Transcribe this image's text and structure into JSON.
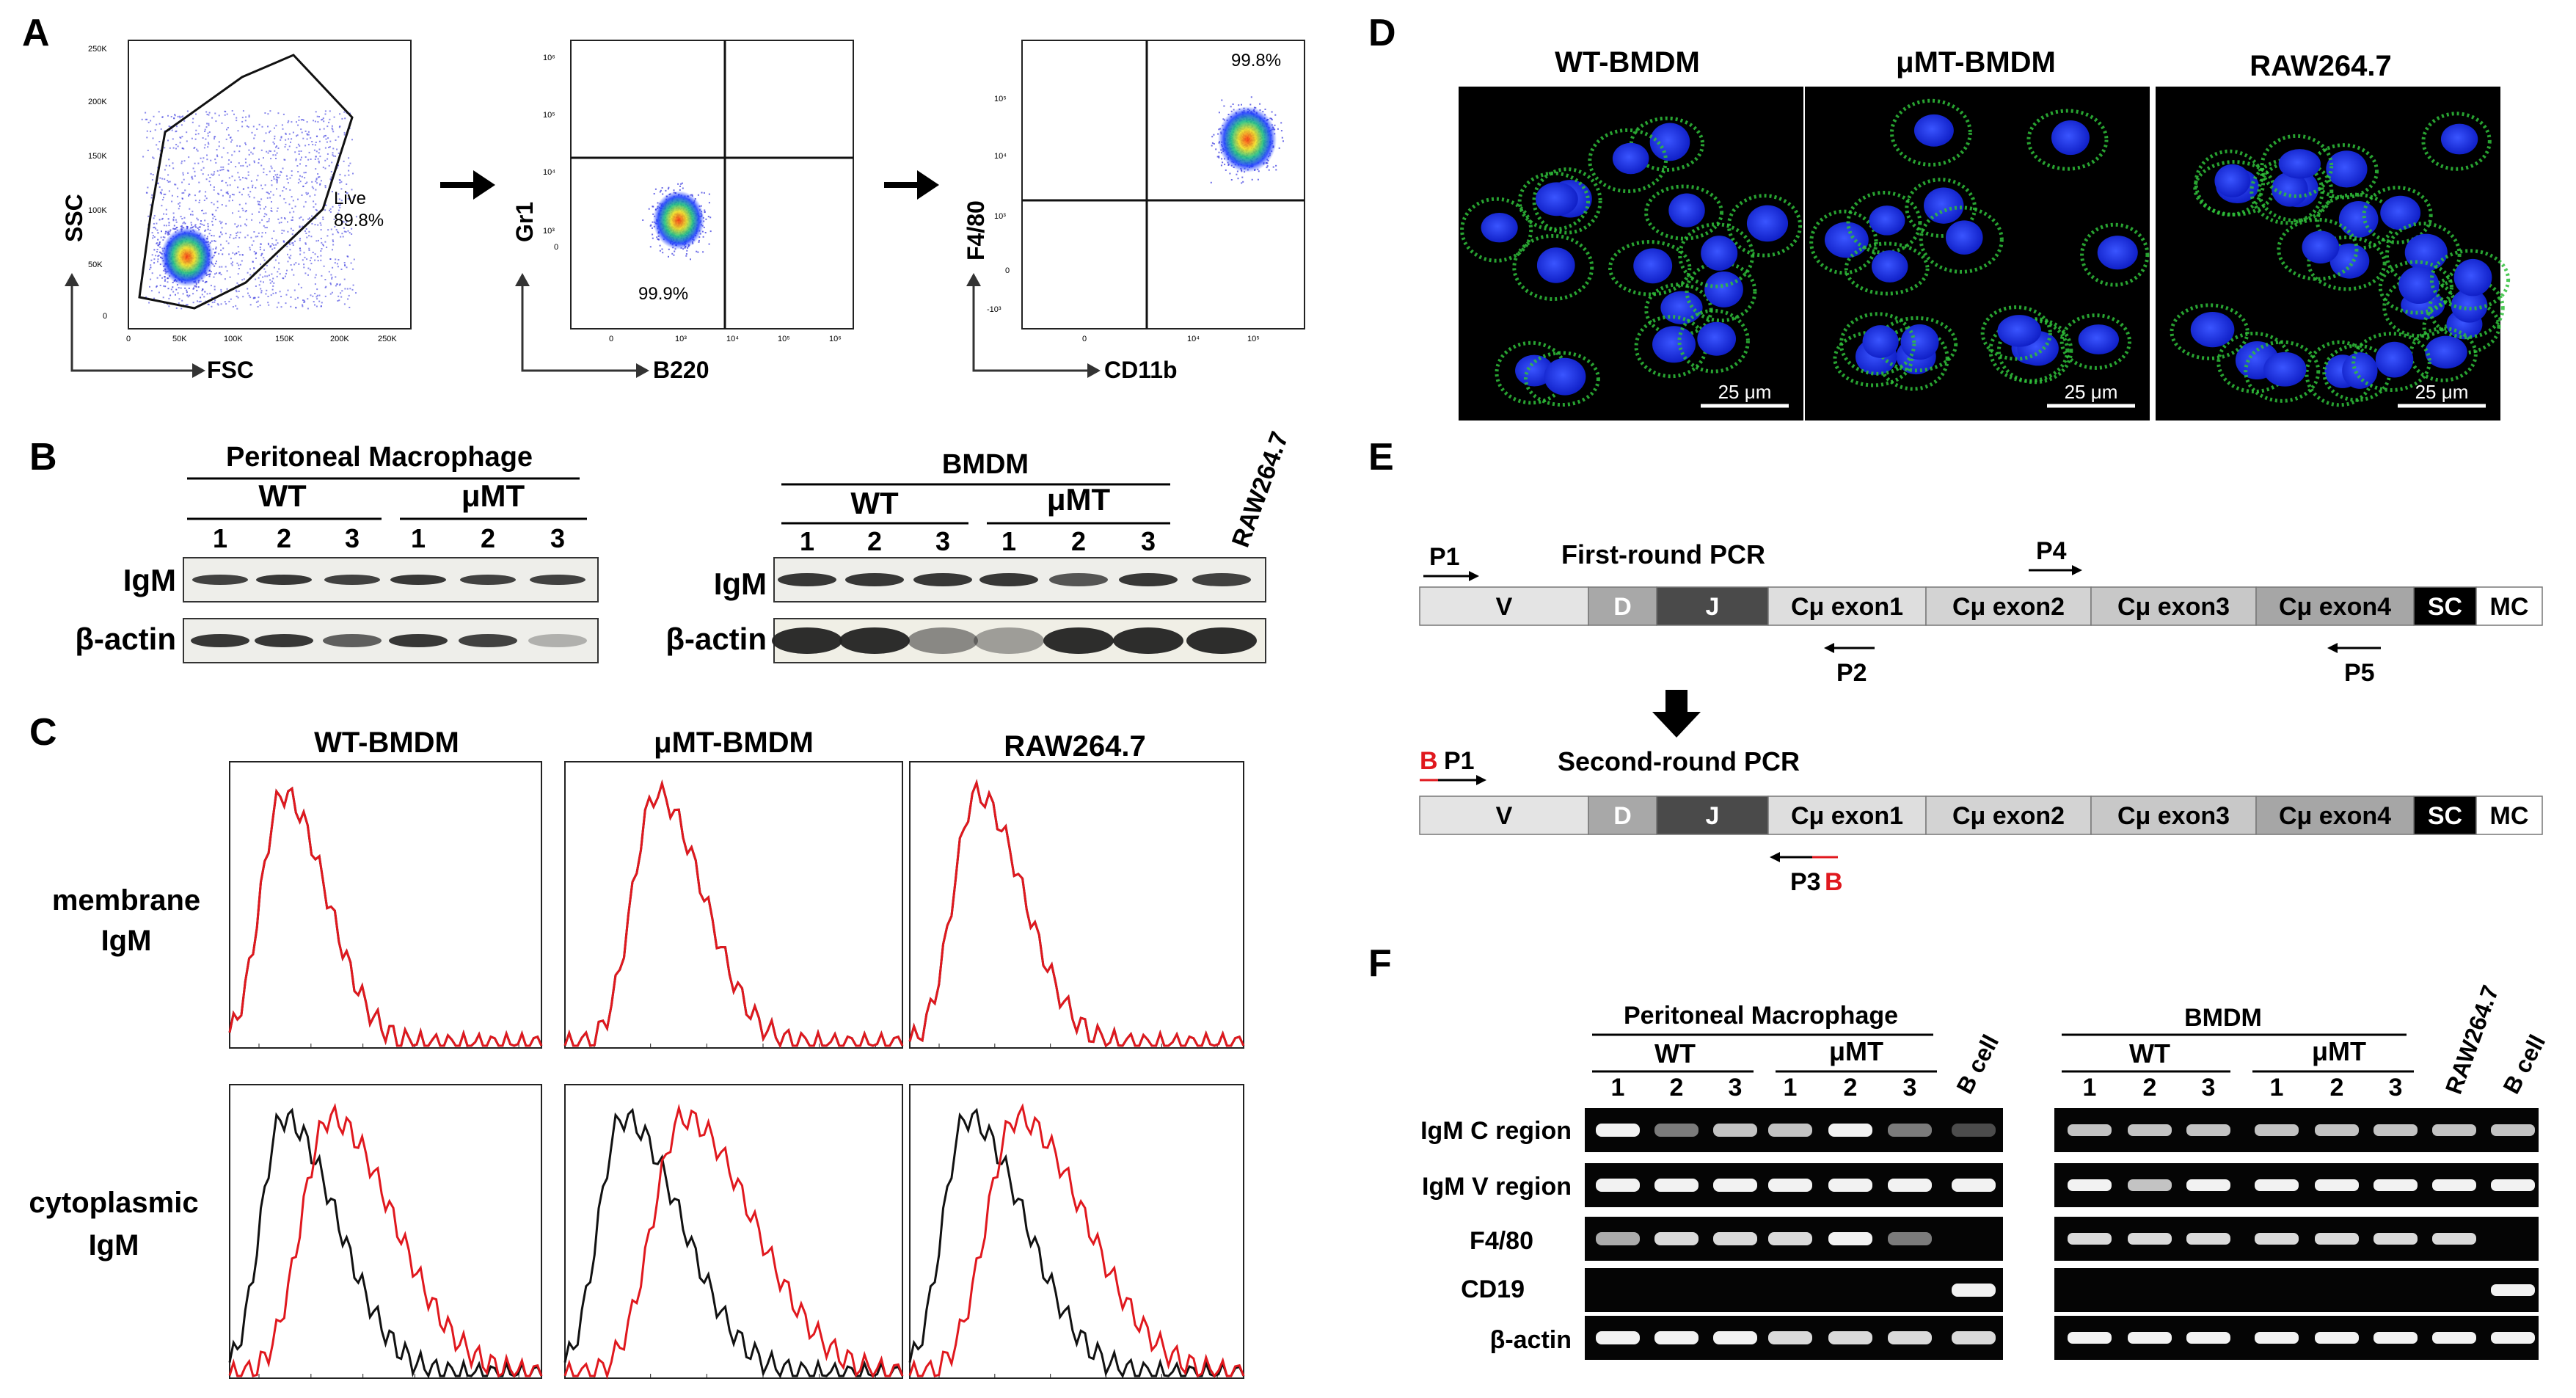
{
  "panel_letters": {
    "a": "A",
    "b": "B",
    "c": "C",
    "d": "D",
    "e": "E",
    "f": "F"
  },
  "panel_a": {
    "plot1": {
      "ylabel": "SSC",
      "xlabel": "FSC",
      "gate_label": "Live",
      "gate_pct": "89.8%",
      "yticks": [
        "250K",
        "200K",
        "150K",
        "100K",
        "50K",
        "0"
      ],
      "xticks": [
        "0",
        "50K",
        "100K",
        "150K",
        "200K",
        "250K"
      ]
    },
    "plot2": {
      "ylabel": "Gr1",
      "xlabel": "B220",
      "pct": "99.9%",
      "yticks": [
        "10⁶",
        "10⁵",
        "10⁴",
        "10³",
        "0"
      ],
      "xticks": [
        "0",
        "10³",
        "10⁴",
        "10⁵",
        "10⁶"
      ]
    },
    "plot3": {
      "ylabel": "F4/80",
      "xlabel": "CD11b",
      "pct": "99.8%",
      "yticks": [
        "10⁵",
        "10⁴",
        "10³",
        "0",
        "-10³"
      ],
      "xticks": [
        "0",
        "10⁴",
        "10⁵"
      ]
    }
  },
  "panel_b": {
    "left": {
      "title": "Peritoneal Macrophage",
      "group1": "WT",
      "group2": "μMT",
      "lanes": [
        "1",
        "2",
        "3",
        "1",
        "2",
        "3"
      ],
      "row1": "IgM",
      "row2": "β-actin"
    },
    "right": {
      "title": "BMDM",
      "group1": "WT",
      "group2": "μMT",
      "lanes": [
        "1",
        "2",
        "3",
        "1",
        "2",
        "3"
      ],
      "extra_lane": "RAW264.7",
      "row1": "IgM",
      "row2": "β-actin"
    }
  },
  "panel_c": {
    "columns": [
      "WT-BMDM",
      "μMT-BMDM",
      "RAW264.7"
    ],
    "row1": [
      "membrane",
      "IgM"
    ],
    "row2": [
      "cytoplasmic",
      "IgM"
    ],
    "colors": {
      "control": "#111111",
      "stain": "#e0181e"
    }
  },
  "panel_d": {
    "columns": [
      "WT-BMDM",
      "μMT-BMDM",
      "RAW264.7"
    ],
    "scale": "25 μm",
    "colors": {
      "nucleus": "#1f3cff",
      "stain": "#2fbf3a"
    }
  },
  "panel_e": {
    "round1": "First-round PCR",
    "round2": "Second-round PCR",
    "segments": [
      "V",
      "D",
      "J",
      "Cμ exon1",
      "Cμ exon2",
      "Cμ exon3",
      "Cμ exon4",
      "SC",
      "MC"
    ],
    "primers": {
      "p1": "P1",
      "p2": "P2",
      "p3": "P3",
      "p4": "P4",
      "p5": "P5",
      "b": "B"
    },
    "colors": {
      "marker": "#e0181e"
    }
  },
  "panel_f": {
    "left": {
      "title": "Peritoneal Macrophage",
      "group1": "WT",
      "group2": "μMT",
      "lanes": [
        "1",
        "2",
        "3",
        "1",
        "2",
        "3"
      ],
      "extra": "B cell"
    },
    "right": {
      "title": "BMDM",
      "group1": "WT",
      "group2": "μMT",
      "lanes": [
        "1",
        "2",
        "3",
        "1",
        "2",
        "3"
      ],
      "extra1": "RAW264.7",
      "extra2": "B cell"
    },
    "rows": [
      "IgM C region",
      "IgM V region",
      "F4/80",
      "CD19",
      "β-actin"
    ]
  }
}
